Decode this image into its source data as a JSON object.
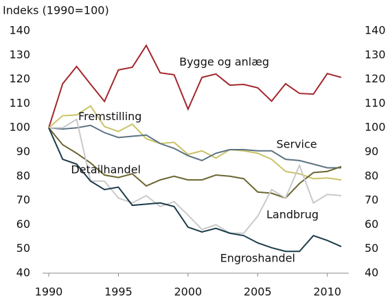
{
  "chart_data": {
    "type": "line",
    "y_label": "Indeks (1990=100)",
    "x": [
      1990,
      1991,
      1992,
      1993,
      1994,
      1995,
      1996,
      1997,
      1998,
      1999,
      2000,
      2001,
      2002,
      2003,
      2004,
      2005,
      2006,
      2007,
      2008,
      2009,
      2010,
      2011
    ],
    "xlim": [
      1990,
      2011
    ],
    "xticks": [
      1990,
      1995,
      2000,
      2005,
      2010
    ],
    "ylim": [
      40,
      140
    ],
    "yticks": [
      40,
      50,
      60,
      70,
      80,
      90,
      100,
      110,
      120,
      130,
      140
    ],
    "y2lim": [
      40,
      140
    ],
    "y2ticks": [
      40,
      50,
      60,
      70,
      80,
      90,
      100,
      110,
      120,
      130,
      140
    ],
    "series": [
      {
        "name": "Bygge og anlæg",
        "color": "#a3262c",
        "values": [
          100,
          118.2,
          125.3,
          118,
          110.9,
          123.9,
          125,
          134,
          122.7,
          121.9,
          107.7,
          120.8,
          122.2,
          117.6,
          117.9,
          116.5,
          111,
          118.2,
          114.2,
          113.9,
          122.4,
          120.8
        ]
      },
      {
        "name": "Fremstilling",
        "color": "#c9c266",
        "values": [
          100,
          105,
          105.3,
          109,
          100.5,
          98.5,
          101.5,
          95.5,
          93.5,
          94,
          89,
          90.5,
          87.5,
          91,
          90.5,
          89.5,
          87,
          82,
          81,
          79,
          79.3,
          78.5
        ]
      },
      {
        "name": "Service",
        "color": "#5b7282",
        "values": [
          100,
          99.5,
          100,
          101,
          98,
          96,
          96.5,
          97,
          93.5,
          91.5,
          88.5,
          86.5,
          89.5,
          91,
          91,
          90.5,
          90.5,
          87,
          86.5,
          85,
          83.5,
          83.5
        ]
      },
      {
        "name": "Detailhandel",
        "color": "#6b6631",
        "values": [
          100,
          93,
          89.5,
          85.5,
          80.5,
          79.5,
          81,
          76,
          78.5,
          80,
          78.5,
          78.5,
          80.5,
          80,
          79,
          73.5,
          73,
          71,
          77,
          81.5,
          82,
          84
        ]
      },
      {
        "name": "Landbrug",
        "color": "#c9c9c9",
        "values": [
          100,
          100,
          103.5,
          78,
          78,
          71,
          69,
          72,
          67.5,
          69.5,
          64,
          58,
          60,
          56.5,
          56.5,
          63.5,
          74.5,
          71,
          84.5,
          69,
          72.5,
          72
        ]
      },
      {
        "name": "Engroshandel",
        "color": "#1b3b4a",
        "values": [
          100,
          87,
          85,
          78,
          74.5,
          75.5,
          68,
          68.5,
          69,
          67.5,
          59,
          57,
          58.5,
          56.5,
          55.5,
          52.5,
          50.5,
          49,
          49,
          55.5,
          53.5,
          51
        ]
      }
    ]
  }
}
